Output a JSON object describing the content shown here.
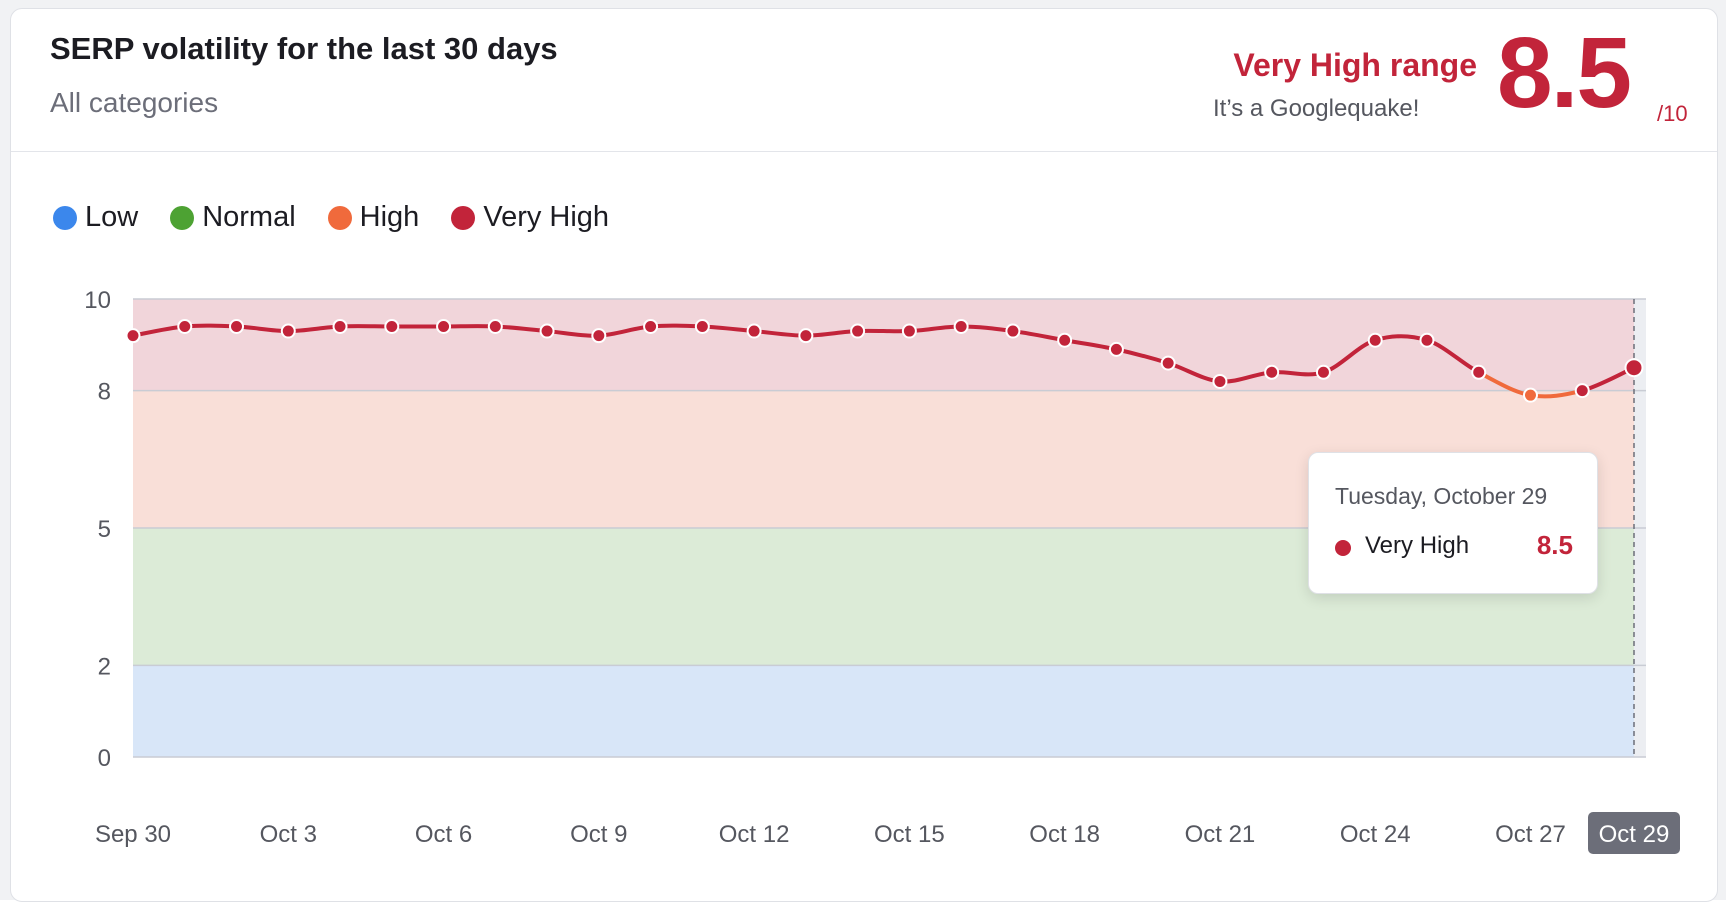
{
  "header": {
    "title": "SERP volatility for the last 30 days",
    "subtitle": "All categories",
    "range_label": "Very High range",
    "range_desc": "It’s a Googlequake!",
    "score": "8.5",
    "score_max": "/10"
  },
  "legend": [
    {
      "label": "Low",
      "color": "#3b87ec"
    },
    {
      "label": "Normal",
      "color": "#4da233"
    },
    {
      "label": "High",
      "color": "#f06a3c"
    },
    {
      "label": "Very High",
      "color": "#c2243a"
    }
  ],
  "tooltip": {
    "date": "Tuesday, October 29",
    "series": "Very High",
    "value": "8.5"
  },
  "chart_data": {
    "type": "line",
    "title": "SERP volatility for the last 30 days",
    "xlabel": "",
    "ylabel": "",
    "ylim": [
      0,
      10
    ],
    "y_ticks": [
      0,
      2,
      5,
      8,
      10
    ],
    "x": [
      "Sep 30",
      "Oct 1",
      "Oct 2",
      "Oct 3",
      "Oct 4",
      "Oct 5",
      "Oct 6",
      "Oct 7",
      "Oct 8",
      "Oct 9",
      "Oct 10",
      "Oct 11",
      "Oct 12",
      "Oct 13",
      "Oct 14",
      "Oct 15",
      "Oct 16",
      "Oct 17",
      "Oct 18",
      "Oct 19",
      "Oct 20",
      "Oct 21",
      "Oct 22",
      "Oct 23",
      "Oct 24",
      "Oct 25",
      "Oct 26",
      "Oct 27",
      "Oct 28",
      "Oct 29"
    ],
    "x_tick_labels": [
      "Sep 30",
      "Oct 3",
      "Oct 6",
      "Oct 9",
      "Oct 12",
      "Oct 15",
      "Oct 18",
      "Oct 21",
      "Oct 24",
      "Oct 27",
      "Oct 29"
    ],
    "highlighted_x": "Oct 29",
    "series": [
      {
        "values": [
          9.2,
          9.4,
          9.4,
          9.3,
          9.4,
          9.4,
          9.4,
          9.4,
          9.3,
          9.2,
          9.4,
          9.4,
          9.3,
          9.2,
          9.3,
          9.3,
          9.4,
          9.3,
          9.1,
          8.9,
          8.6,
          8.2,
          8.4,
          8.4,
          9.1,
          9.1,
          8.4,
          7.9,
          8.0,
          8.5
        ]
      }
    ],
    "bands": [
      {
        "label": "Low",
        "from": 0,
        "to": 2,
        "color": "#d8e6f8"
      },
      {
        "label": "Normal",
        "from": 2,
        "to": 5,
        "color": "#dcebd7"
      },
      {
        "label": "High",
        "from": 5,
        "to": 8,
        "color": "#f9dfd8"
      },
      {
        "label": "Very High",
        "from": 8,
        "to": 10,
        "color": "#f1d5da"
      }
    ],
    "line_colors": {
      "very_high": "#c2243a",
      "high": "#f06a3c"
    },
    "grid": true,
    "legend_position": "top-left"
  }
}
